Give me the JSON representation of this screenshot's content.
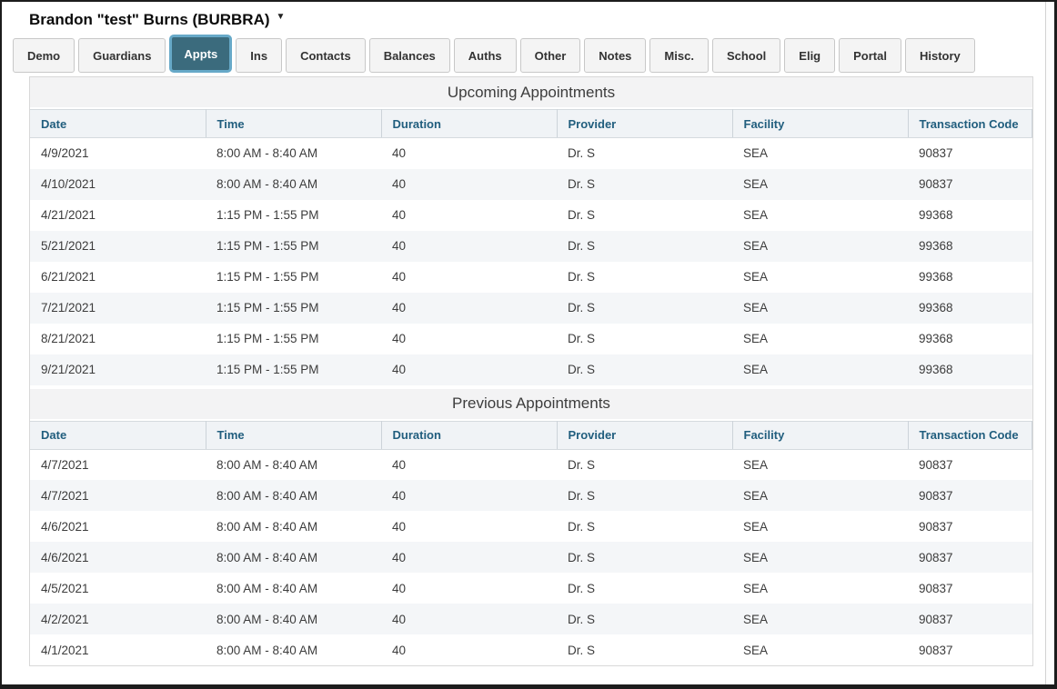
{
  "header": {
    "patient_title": "Brandon \"test\" Burns (BURBRA)",
    "caret_glyph": "▼"
  },
  "tabs": [
    {
      "label": "Demo",
      "active": false
    },
    {
      "label": "Guardians",
      "active": false
    },
    {
      "label": "Appts",
      "active": true
    },
    {
      "label": "Ins",
      "active": false
    },
    {
      "label": "Contacts",
      "active": false
    },
    {
      "label": "Balances",
      "active": false
    },
    {
      "label": "Auths",
      "active": false
    },
    {
      "label": "Other",
      "active": false
    },
    {
      "label": "Notes",
      "active": false
    },
    {
      "label": "Misc.",
      "active": false
    },
    {
      "label": "School",
      "active": false
    },
    {
      "label": "Elig",
      "active": false
    },
    {
      "label": "Portal",
      "active": false
    },
    {
      "label": "History",
      "active": false
    }
  ],
  "columns": [
    "Date",
    "Time",
    "Duration",
    "Provider",
    "Facility",
    "Transaction Code"
  ],
  "upcoming": {
    "title": "Upcoming Appointments",
    "rows": [
      [
        "4/9/2021",
        "8:00 AM - 8:40 AM",
        "40",
        "Dr. S",
        "SEA",
        "90837"
      ],
      [
        "4/10/2021",
        "8:00 AM - 8:40 AM",
        "40",
        "Dr. S",
        "SEA",
        "90837"
      ],
      [
        "4/21/2021",
        "1:15 PM - 1:55 PM",
        "40",
        "Dr. S",
        "SEA",
        "99368"
      ],
      [
        "5/21/2021",
        "1:15 PM - 1:55 PM",
        "40",
        "Dr. S",
        "SEA",
        "99368"
      ],
      [
        "6/21/2021",
        "1:15 PM - 1:55 PM",
        "40",
        "Dr. S",
        "SEA",
        "99368"
      ],
      [
        "7/21/2021",
        "1:15 PM - 1:55 PM",
        "40",
        "Dr. S",
        "SEA",
        "99368"
      ],
      [
        "8/21/2021",
        "1:15 PM - 1:55 PM",
        "40",
        "Dr. S",
        "SEA",
        "99368"
      ],
      [
        "9/21/2021",
        "1:15 PM - 1:55 PM",
        "40",
        "Dr. S",
        "SEA",
        "99368"
      ]
    ]
  },
  "previous": {
    "title": "Previous Appointments",
    "rows": [
      [
        "4/7/2021",
        "8:00 AM - 8:40 AM",
        "40",
        "Dr. S",
        "SEA",
        "90837"
      ],
      [
        "4/7/2021",
        "8:00 AM - 8:40 AM",
        "40",
        "Dr. S",
        "SEA",
        "90837"
      ],
      [
        "4/6/2021",
        "8:00 AM - 8:40 AM",
        "40",
        "Dr. S",
        "SEA",
        "90837"
      ],
      [
        "4/6/2021",
        "8:00 AM - 8:40 AM",
        "40",
        "Dr. S",
        "SEA",
        "90837"
      ],
      [
        "4/5/2021",
        "8:00 AM - 8:40 AM",
        "40",
        "Dr. S",
        "SEA",
        "90837"
      ],
      [
        "4/2/2021",
        "8:00 AM - 8:40 AM",
        "40",
        "Dr. S",
        "SEA",
        "90837"
      ],
      [
        "4/1/2021",
        "8:00 AM - 8:40 AM",
        "40",
        "Dr. S",
        "SEA",
        "90837"
      ]
    ]
  },
  "colors": {
    "active_tab_bg": "#3b6b7d",
    "active_tab_border": "#67a9c8",
    "header_text": "#215e7e",
    "section_header_bg": "#f3f3f4",
    "row_alt_bg": "#f4f6f8"
  }
}
